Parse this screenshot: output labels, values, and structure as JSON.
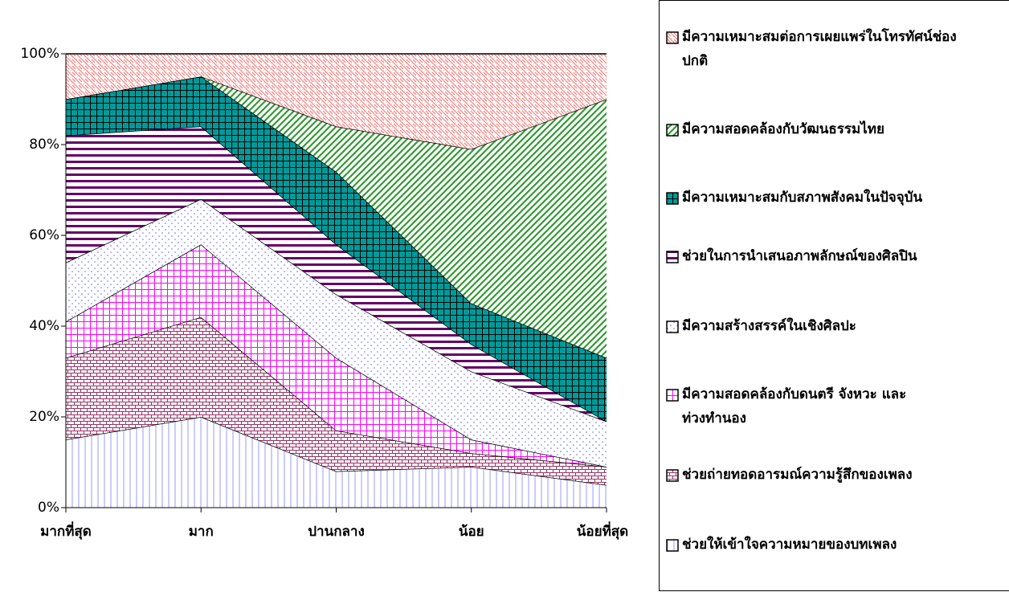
{
  "chart_data": {
    "type": "stacked_area_percent",
    "categories": [
      "มากที่สุด",
      "มาก",
      "ปานกลาง",
      "น้อย",
      "น้อยที่สุด"
    ],
    "ylim": [
      0,
      100
    ],
    "yticks": [
      {
        "value": 0,
        "label": "0%"
      },
      {
        "value": 20,
        "label": "20%"
      },
      {
        "value": 40,
        "label": "40%"
      },
      {
        "value": 60,
        "label": "60%"
      },
      {
        "value": 80,
        "label": "80%"
      },
      {
        "value": 100,
        "label": "100%"
      }
    ],
    "legend": "right",
    "series": [
      {
        "name": "ช่วยให้เข้าใจความหมายของบทเพลง",
        "color": "#9999ff",
        "values": [
          15,
          20,
          8,
          9,
          5
        ]
      },
      {
        "name": "ช่วยถ่ายทอดอารมณ์ความรู้สึกของเพลง",
        "color": "#993366",
        "values": [
          18,
          22,
          9,
          3,
          4
        ]
      },
      {
        "name": "มีความสอดคล้องกับดนตรี จังหวะ และท่วงทำนอง",
        "color": "#ff00ff",
        "values": [
          8,
          16,
          16,
          3,
          0
        ]
      },
      {
        "name": "มีความสร้างสรรค์ในเชิงศิลปะ",
        "color": "#6666ff",
        "values": [
          13,
          10,
          14,
          15,
          10
        ]
      },
      {
        "name": "ช่วยในการนำเสนอภาพลักษณ์ของศิลปิน",
        "color": "#660066",
        "values": [
          28,
          16,
          11,
          6,
          0
        ]
      },
      {
        "name": "มีความเหมาะสมกับสภาพสังคมในปัจจุบัน",
        "color": "#009999",
        "values": [
          8,
          11,
          16,
          9,
          14
        ]
      },
      {
        "name": "มีความสอดคล้องกับวัฒนธรรมไทย",
        "color": "#339933",
        "values": [
          0,
          0,
          10,
          34,
          57
        ]
      },
      {
        "name": "มีความเหมาะสมต่อการเผยแพร่ในโทรทัศน์ช่องปกติ",
        "color": "#ff6666",
        "values": [
          10,
          5,
          16,
          21,
          10
        ]
      }
    ]
  }
}
